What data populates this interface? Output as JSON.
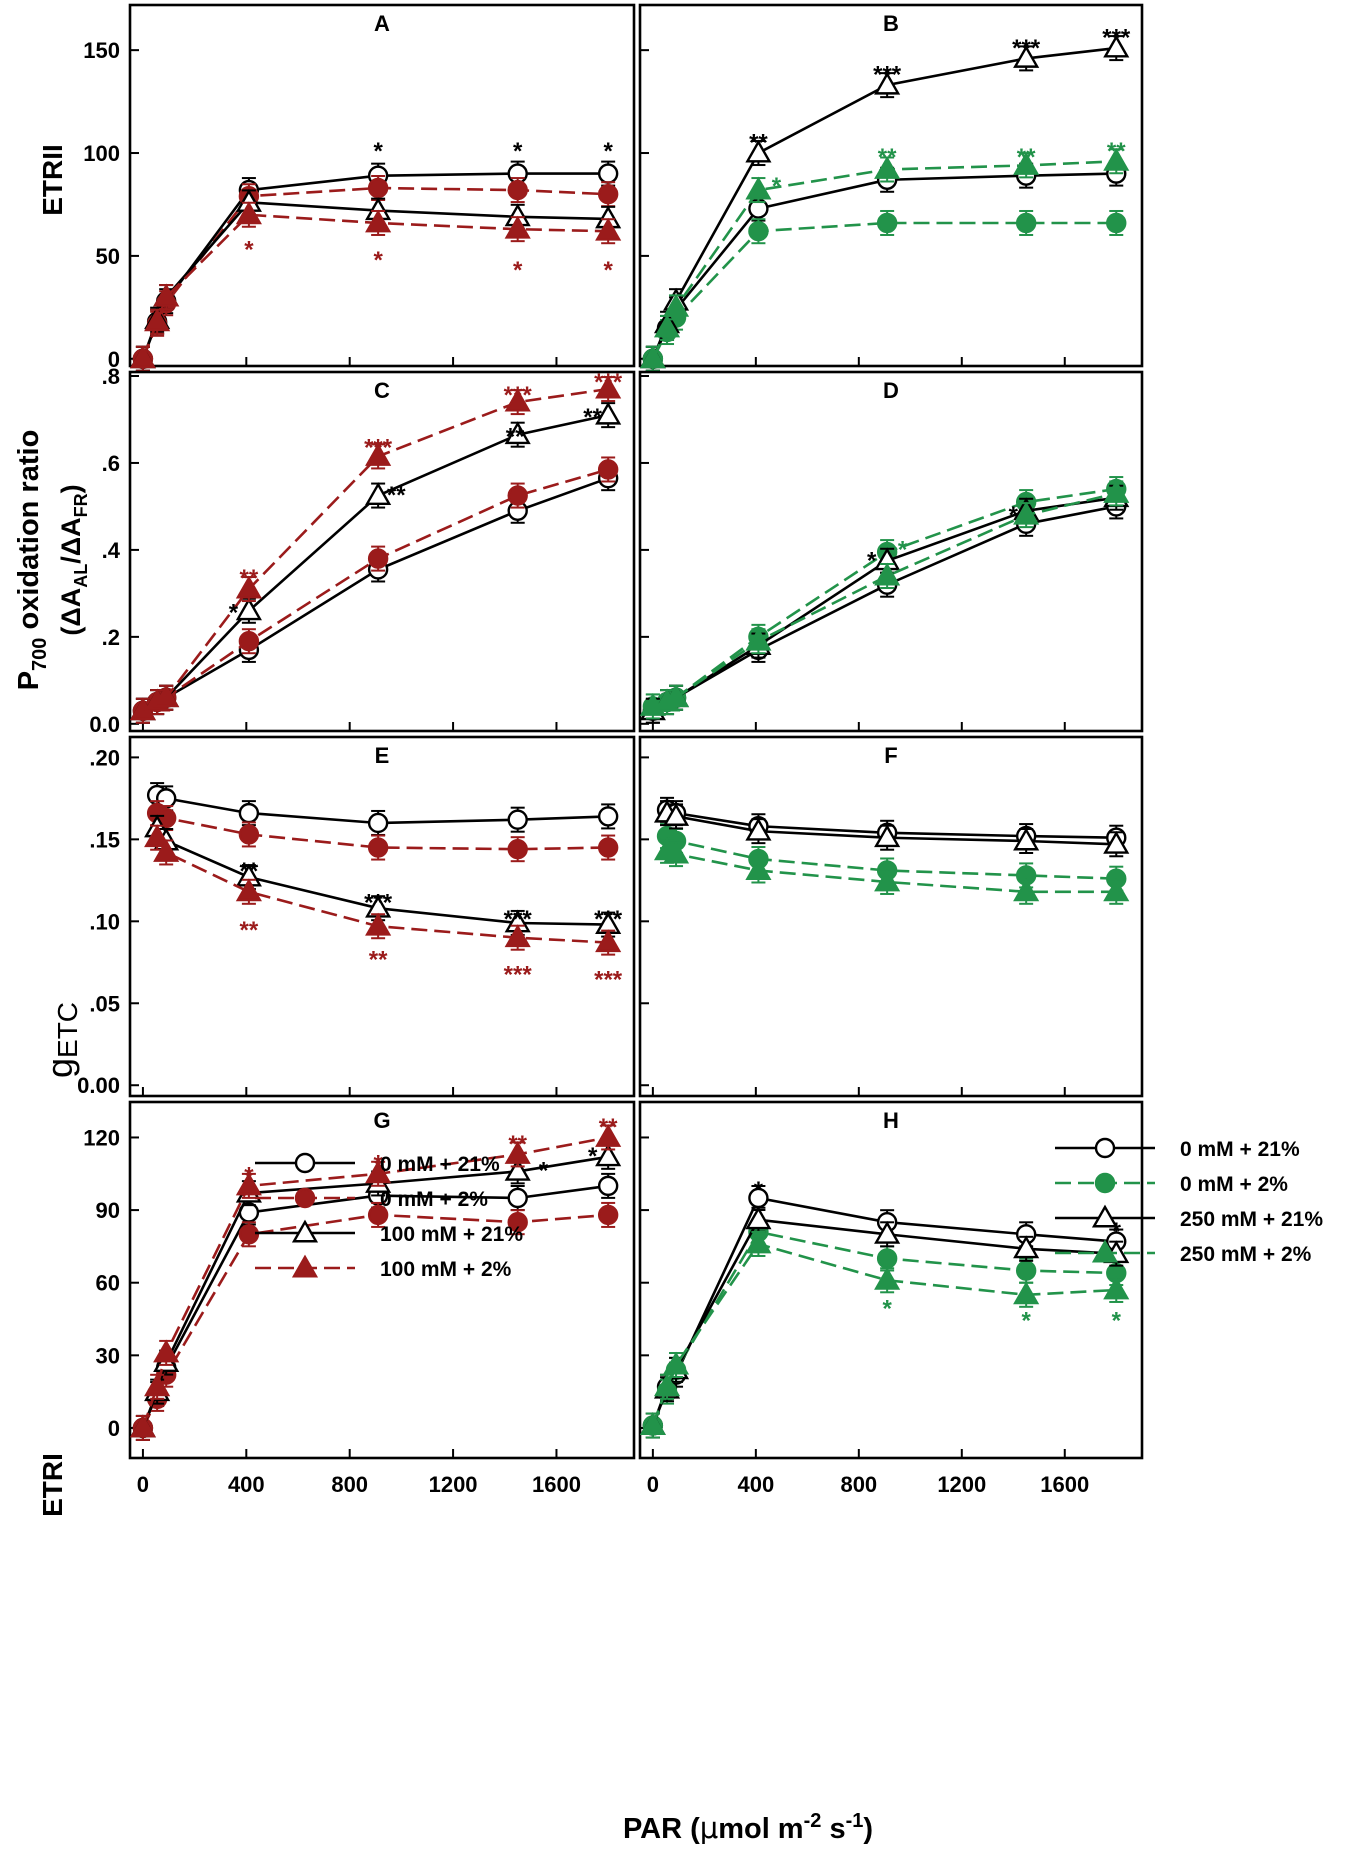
{
  "figure": {
    "x_axis_label": {
      "prefix": "PAR (",
      "mu": "μ",
      "mol": "mol m",
      "exp1": "-2",
      "mid": " s",
      "exp2": "-1",
      "suffix": ")"
    },
    "left_labels": {
      "row1": "ETRII",
      "row2_main": "P",
      "row2_sub": "700",
      "row2_rest": " oxidation ratio",
      "row2_line2": {
        "open": "(ΔA",
        "sub1": "AL",
        "mid": "/ΔA",
        "sub2": "FR",
        "close": ")"
      },
      "row3_main": "g",
      "row3_sub": "ETC",
      "row4": "ETRI"
    },
    "x_ticks": [
      0,
      400,
      800,
      1200,
      1600
    ],
    "x_tick_labels": [
      "0",
      "400",
      "800",
      "1200",
      "1600"
    ],
    "rows": [
      {
        "ylim": [
          0,
          170
        ],
        "ticks": [
          0,
          50,
          100,
          150
        ],
        "tick_labels": [
          "0",
          "50",
          "100",
          "150"
        ]
      },
      {
        "ylim": [
          0,
          0.8
        ],
        "ticks": [
          0,
          0.2,
          0.4,
          0.6,
          0.8
        ],
        "tick_labels": [
          "0.0",
          ".2",
          ".4",
          ".6",
          ".8"
        ]
      },
      {
        "ylim": [
          0,
          0.21
        ],
        "ticks": [
          0,
          0.05,
          0.1,
          0.15,
          0.2
        ],
        "tick_labels": [
          "0.00",
          ".05",
          ".10",
          ".15",
          ".20"
        ]
      },
      {
        "ylim": [
          -8,
          133
        ],
        "ticks": [
          0,
          30,
          60,
          90,
          120
        ],
        "tick_labels": [
          "0",
          "30",
          "60",
          "90",
          "120"
        ]
      }
    ],
    "colors": {
      "black": "#000000",
      "red": "#9b1b1b",
      "green": "#22934a"
    }
  },
  "legends": {
    "left": [
      "0 mM + 21%",
      "0 mM + 2%",
      "100 mM + 21%",
      "100 mM + 2%"
    ],
    "right": [
      "0 mM + 21%",
      "0 mM + 2%",
      "250 mM + 21%",
      "250 mM + 2%"
    ]
  },
  "chart_data": [
    {
      "panel": "A",
      "type": "line",
      "ylabel": "ETRII",
      "xlabel": "PAR (μmol m-2 s-1)",
      "x": [
        0,
        55,
        90,
        410,
        910,
        1450,
        1800
      ],
      "xlim": [
        -50,
        1900
      ],
      "ylim": [
        0,
        170
      ],
      "series": [
        {
          "name": "0 mM + 21%",
          "style": "open-circle",
          "color": "black",
          "dashed": false,
          "values": [
            0,
            18,
            28,
            82,
            89,
            90,
            90
          ]
        },
        {
          "name": "0 mM + 2%",
          "style": "filled-circle",
          "color": "red",
          "dashed": true,
          "values": [
            0,
            17,
            27,
            79,
            83,
            82,
            80
          ]
        },
        {
          "name": "100 mM + 21%",
          "style": "open-triangle",
          "color": "black",
          "dashed": false,
          "values": [
            0,
            19,
            30,
            76,
            72,
            69,
            68
          ]
        },
        {
          "name": "100 mM + 2%",
          "style": "filled-triangle",
          "color": "red",
          "dashed": true,
          "values": [
            0,
            18,
            30,
            70,
            66,
            63,
            62
          ]
        }
      ],
      "annotations": [
        {
          "x": 910,
          "y": 103,
          "text": "*",
          "color": "black"
        },
        {
          "x": 1450,
          "y": 103,
          "text": "*",
          "color": "black"
        },
        {
          "x": 1800,
          "y": 103,
          "text": "*",
          "color": "black"
        },
        {
          "x": 410,
          "y": 55,
          "text": "*",
          "color": "red"
        },
        {
          "x": 910,
          "y": 50,
          "text": "*",
          "color": "red"
        },
        {
          "x": 1450,
          "y": 45,
          "text": "*",
          "color": "red"
        },
        {
          "x": 1800,
          "y": 45,
          "text": "*",
          "color": "red"
        }
      ]
    },
    {
      "panel": "B",
      "type": "line",
      "ylabel": "ETRII",
      "xlabel": "PAR (μmol m-2 s-1)",
      "x": [
        0,
        55,
        90,
        410,
        910,
        1450,
        1800
      ],
      "xlim": [
        -50,
        1900
      ],
      "ylim": [
        0,
        170
      ],
      "series": [
        {
          "name": "0 mM + 21%",
          "style": "open-circle",
          "color": "black",
          "dashed": false,
          "values": [
            0,
            15,
            24,
            73,
            87,
            89,
            90
          ]
        },
        {
          "name": "0 mM + 2%",
          "style": "filled-circle",
          "color": "green",
          "dashed": true,
          "values": [
            0,
            13,
            20,
            62,
            66,
            66,
            66
          ]
        },
        {
          "name": "250 mM + 21%",
          "style": "open-triangle",
          "color": "black",
          "dashed": false,
          "values": [
            0,
            17,
            28,
            100,
            133,
            146,
            151
          ]
        },
        {
          "name": "250 mM + 2%",
          "style": "filled-triangle",
          "color": "green",
          "dashed": true,
          "values": [
            0,
            15,
            25,
            82,
            92,
            94,
            96
          ]
        }
      ],
      "annotations": [
        {
          "x": 410,
          "y": 107,
          "text": "**",
          "color": "black"
        },
        {
          "x": 910,
          "y": 140,
          "text": "***",
          "color": "black"
        },
        {
          "x": 1450,
          "y": 153,
          "text": "***",
          "color": "black"
        },
        {
          "x": 1800,
          "y": 158,
          "text": "***",
          "color": "black"
        },
        {
          "x": 480,
          "y": 86,
          "text": "*",
          "color": "green"
        },
        {
          "x": 910,
          "y": 100,
          "text": "**",
          "color": "green"
        },
        {
          "x": 1450,
          "y": 100,
          "text": "**",
          "color": "green"
        },
        {
          "x": 1800,
          "y": 103,
          "text": "**",
          "color": "green"
        }
      ]
    },
    {
      "panel": "C",
      "type": "line",
      "ylabel": "P700 oxidation ratio (ΔAAL/ΔAFR)",
      "xlabel": "PAR (μmol m-2 s-1)",
      "x": [
        0,
        55,
        90,
        410,
        910,
        1450,
        1800
      ],
      "xlim": [
        -50,
        1900
      ],
      "ylim": [
        0,
        0.8
      ],
      "series": [
        {
          "name": "0 mM + 21%",
          "style": "open-circle",
          "color": "black",
          "dashed": false,
          "values": [
            0.03,
            0.05,
            0.06,
            0.17,
            0.355,
            0.49,
            0.565
          ]
        },
        {
          "name": "0 mM + 2%",
          "style": "filled-circle",
          "color": "red",
          "dashed": true,
          "values": [
            0.03,
            0.05,
            0.06,
            0.19,
            0.38,
            0.525,
            0.585
          ]
        },
        {
          "name": "100 mM + 21%",
          "style": "open-triangle",
          "color": "black",
          "dashed": false,
          "values": [
            0.03,
            0.05,
            0.06,
            0.26,
            0.525,
            0.665,
            0.71
          ]
        },
        {
          "name": "100 mM + 2%",
          "style": "filled-triangle",
          "color": "red",
          "dashed": true,
          "values": [
            0.03,
            0.05,
            0.06,
            0.31,
            0.615,
            0.74,
            0.77
          ]
        }
      ],
      "annotations": [
        {
          "x": 350,
          "y": 0.265,
          "text": "*",
          "color": "black"
        },
        {
          "x": 980,
          "y": 0.535,
          "text": "**",
          "color": "black"
        },
        {
          "x": 1440,
          "y": 0.67,
          "text": "**",
          "color": "black"
        },
        {
          "x": 1740,
          "y": 0.715,
          "text": "**",
          "color": "black"
        },
        {
          "x": 410,
          "y": 0.345,
          "text": "**",
          "color": "red"
        },
        {
          "x": 910,
          "y": 0.645,
          "text": "***",
          "color": "red"
        },
        {
          "x": 1450,
          "y": 0.765,
          "text": "***",
          "color": "red"
        },
        {
          "x": 1800,
          "y": 0.795,
          "text": "***",
          "color": "red"
        }
      ]
    },
    {
      "panel": "D",
      "type": "line",
      "ylabel": "P700 oxidation ratio (ΔAAL/ΔAFR)",
      "xlabel": "PAR (μmol m-2 s-1)",
      "x": [
        0,
        55,
        90,
        410,
        910,
        1450,
        1800
      ],
      "xlim": [
        -50,
        1900
      ],
      "ylim": [
        0,
        0.8
      ],
      "series": [
        {
          "name": "0 mM + 21%",
          "style": "open-circle",
          "color": "black",
          "dashed": false,
          "values": [
            0.03,
            0.05,
            0.06,
            0.17,
            0.32,
            0.46,
            0.5
          ]
        },
        {
          "name": "0 mM + 2%",
          "style": "filled-circle",
          "color": "green",
          "dashed": true,
          "values": [
            0.04,
            0.05,
            0.06,
            0.2,
            0.395,
            0.51,
            0.54
          ]
        },
        {
          "name": "250 mM + 21%",
          "style": "open-triangle",
          "color": "black",
          "dashed": false,
          "values": [
            0.03,
            0.05,
            0.06,
            0.18,
            0.375,
            0.49,
            0.52
          ]
        },
        {
          "name": "250 mM + 2%",
          "style": "filled-triangle",
          "color": "green",
          "dashed": true,
          "values": [
            0.04,
            0.05,
            0.06,
            0.19,
            0.34,
            0.48,
            0.53
          ]
        }
      ],
      "annotations": [
        {
          "x": 850,
          "y": 0.385,
          "text": "*",
          "color": "black"
        },
        {
          "x": 1400,
          "y": 0.49,
          "text": "*",
          "color": "black"
        },
        {
          "x": 970,
          "y": 0.41,
          "text": "*",
          "color": "green"
        }
      ]
    },
    {
      "panel": "E",
      "type": "line",
      "ylabel": "gETC",
      "xlabel": "PAR (μmol m-2 s-1)",
      "x": [
        0,
        55,
        90,
        410,
        910,
        1450,
        1800
      ],
      "xlim": [
        -50,
        1900
      ],
      "ylim": [
        0,
        0.21
      ],
      "series": [
        {
          "name": "0 mM + 21%",
          "style": "open-circle",
          "color": "black",
          "dashed": false,
          "values": [
            null,
            0.177,
            0.175,
            0.166,
            0.16,
            0.162,
            0.164
          ]
        },
        {
          "name": "0 mM + 2%",
          "style": "filled-circle",
          "color": "red",
          "dashed": true,
          "values": [
            null,
            0.166,
            0.163,
            0.153,
            0.145,
            0.144,
            0.145
          ]
        },
        {
          "name": "100 mM + 21%",
          "style": "open-triangle",
          "color": "black",
          "dashed": false,
          "values": [
            null,
            0.157,
            0.149,
            0.127,
            0.108,
            0.099,
            0.098
          ]
        },
        {
          "name": "100 mM + 2%",
          "style": "filled-triangle",
          "color": "red",
          "dashed": true,
          "values": [
            null,
            0.151,
            0.142,
            0.118,
            0.097,
            0.09,
            0.087
          ]
        }
      ],
      "annotations": [
        {
          "x": 410,
          "y": 0.133,
          "text": "**",
          "color": "black"
        },
        {
          "x": 910,
          "y": 0.114,
          "text": "***",
          "color": "black"
        },
        {
          "x": 1450,
          "y": 0.104,
          "text": "***",
          "color": "black"
        },
        {
          "x": 1800,
          "y": 0.104,
          "text": "***",
          "color": "black"
        },
        {
          "x": 410,
          "y": 0.097,
          "text": "**",
          "color": "red"
        },
        {
          "x": 910,
          "y": 0.079,
          "text": "**",
          "color": "red"
        },
        {
          "x": 1450,
          "y": 0.07,
          "text": "***",
          "color": "red"
        },
        {
          "x": 1800,
          "y": 0.067,
          "text": "***",
          "color": "red"
        }
      ]
    },
    {
      "panel": "F",
      "type": "line",
      "ylabel": "gETC",
      "xlabel": "PAR (μmol m-2 s-1)",
      "x": [
        0,
        55,
        90,
        410,
        910,
        1450,
        1800
      ],
      "xlim": [
        -50,
        1900
      ],
      "ylim": [
        0,
        0.21
      ],
      "series": [
        {
          "name": "0 mM + 21%",
          "style": "open-circle",
          "color": "black",
          "dashed": false,
          "values": [
            null,
            0.168,
            0.166,
            0.158,
            0.154,
            0.152,
            0.151
          ]
        },
        {
          "name": "0 mM + 2%",
          "style": "filled-circle",
          "color": "green",
          "dashed": true,
          "values": [
            null,
            0.152,
            0.149,
            0.138,
            0.131,
            0.128,
            0.126
          ]
        },
        {
          "name": "250 mM + 21%",
          "style": "open-triangle",
          "color": "black",
          "dashed": false,
          "values": [
            null,
            0.166,
            0.164,
            0.155,
            0.151,
            0.149,
            0.147
          ]
        },
        {
          "name": "250 mM + 2%",
          "style": "filled-triangle",
          "color": "green",
          "dashed": true,
          "values": [
            null,
            0.143,
            0.141,
            0.131,
            0.124,
            0.118,
            0.118
          ]
        }
      ],
      "annotations": []
    },
    {
      "panel": "G",
      "type": "line",
      "ylabel": "ETRI",
      "xlabel": "PAR (μmol m-2 s-1)",
      "x": [
        0,
        55,
        90,
        410,
        910,
        1450,
        1800
      ],
      "xlim": [
        -50,
        1900
      ],
      "ylim": [
        -8,
        133
      ],
      "series": [
        {
          "name": "0 mM + 21%",
          "style": "open-circle",
          "color": "black",
          "dashed": false,
          "values": [
            0,
            14,
            25,
            89,
            96,
            95,
            100
          ]
        },
        {
          "name": "0 mM + 2%",
          "style": "filled-circle",
          "color": "red",
          "dashed": true,
          "values": [
            0,
            12,
            22,
            80,
            88,
            85,
            88
          ]
        },
        {
          "name": "100 mM + 21%",
          "style": "open-triangle",
          "color": "black",
          "dashed": false,
          "values": [
            0,
            15,
            27,
            97,
            101,
            106,
            112
          ]
        },
        {
          "name": "100 mM + 2%",
          "style": "filled-triangle",
          "color": "red",
          "dashed": true,
          "values": [
            0,
            17,
            31,
            100,
            105,
            113,
            120
          ]
        }
      ],
      "annotations": [
        {
          "x": 1550,
          "y": 108,
          "text": "*",
          "color": "black"
        },
        {
          "x": 1740,
          "y": 114,
          "text": "*",
          "color": "black"
        },
        {
          "x": 410,
          "y": 106,
          "text": "*",
          "color": "red"
        },
        {
          "x": 910,
          "y": 111,
          "text": "*",
          "color": "red"
        },
        {
          "x": 1450,
          "y": 119,
          "text": "**",
          "color": "red"
        },
        {
          "x": 1800,
          "y": 126,
          "text": "**",
          "color": "red"
        }
      ]
    },
    {
      "panel": "H",
      "type": "line",
      "ylabel": "ETRI",
      "xlabel": "PAR (μmol m-2 s-1)",
      "x": [
        0,
        55,
        90,
        410,
        910,
        1450,
        1800
      ],
      "xlim": [
        -50,
        1900
      ],
      "ylim": [
        -8,
        133
      ],
      "series": [
        {
          "name": "0 mM + 21%",
          "style": "open-circle",
          "color": "black",
          "dashed": false,
          "values": [
            1,
            17,
            22,
            95,
            85,
            80,
            77
          ]
        },
        {
          "name": "0 mM + 2%",
          "style": "filled-circle",
          "color": "green",
          "dashed": true,
          "values": [
            1,
            15,
            24,
            81,
            70,
            65,
            64
          ]
        },
        {
          "name": "250 mM + 21%",
          "style": "open-triangle",
          "color": "black",
          "dashed": false,
          "values": [
            1,
            16,
            24,
            86,
            80,
            74,
            72
          ]
        },
        {
          "name": "250 mM + 2%",
          "style": "filled-triangle",
          "color": "green",
          "dashed": true,
          "values": [
            1,
            17,
            26,
            76,
            61,
            55,
            57
          ]
        }
      ],
      "annotations": [
        {
          "x": 410,
          "y": 100,
          "text": "*",
          "color": "black"
        },
        {
          "x": 1800,
          "y": 83,
          "text": "*",
          "color": "black"
        },
        {
          "x": 910,
          "y": 51,
          "text": "*",
          "color": "green"
        },
        {
          "x": 1450,
          "y": 46,
          "text": "*",
          "color": "green"
        },
        {
          "x": 1800,
          "y": 46,
          "text": "*",
          "color": "green"
        }
      ]
    }
  ]
}
